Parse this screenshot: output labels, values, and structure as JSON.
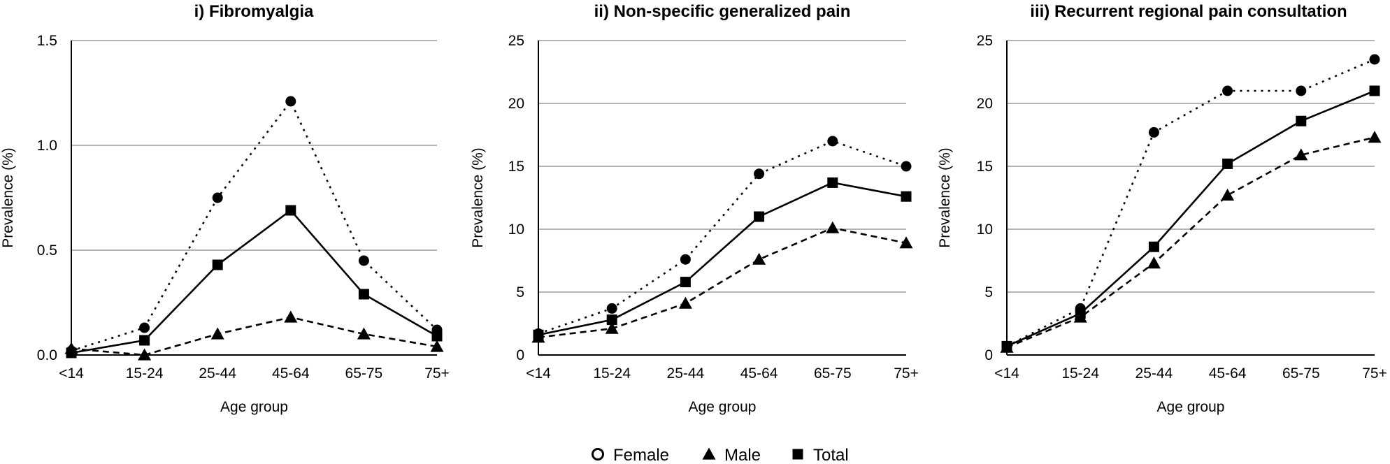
{
  "chart_data": [
    {
      "type": "line",
      "title": "i) Fibromyalgia",
      "xlabel": "Age group",
      "ylabel": "Prevalence (%)",
      "categories": [
        "<14",
        "15-24",
        "25-44",
        "45-64",
        "65-75",
        "75+"
      ],
      "ylim": [
        0,
        1.5
      ],
      "yticks": [
        "0.0",
        "0.5",
        "1.0",
        "1.5"
      ],
      "grid": true,
      "series": [
        {
          "name": "Female",
          "values": [
            0.02,
            0.13,
            0.75,
            1.21,
            0.45,
            0.12
          ]
        },
        {
          "name": "Male",
          "values": [
            0.03,
            0.0,
            0.1,
            0.18,
            0.1,
            0.04
          ]
        },
        {
          "name": "Total",
          "values": [
            0.01,
            0.07,
            0.43,
            0.69,
            0.29,
            0.09
          ]
        }
      ]
    },
    {
      "type": "line",
      "title": "ii) Non-specific generalized pain",
      "xlabel": "Age group",
      "ylabel": "Prevalence (%)",
      "categories": [
        "<14",
        "15-24",
        "25-44",
        "45-64",
        "65-75",
        "75+"
      ],
      "ylim": [
        0,
        25
      ],
      "yticks": [
        "0",
        "5",
        "10",
        "15",
        "20",
        "25"
      ],
      "grid": true,
      "series": [
        {
          "name": "Female",
          "values": [
            1.7,
            3.7,
            7.6,
            14.4,
            17.0,
            15.0
          ]
        },
        {
          "name": "Male",
          "values": [
            1.4,
            2.1,
            4.1,
            7.6,
            10.1,
            8.9
          ]
        },
        {
          "name": "Total",
          "values": [
            1.6,
            2.8,
            5.8,
            11.0,
            13.7,
            12.6
          ]
        }
      ]
    },
    {
      "type": "line",
      "title": "iii) Recurrent regional pain consultation",
      "xlabel": "Age group",
      "ylabel": "Prevalence (%)",
      "categories": [
        "<14",
        "15-24",
        "25-44",
        "45-64",
        "65-75",
        "75+"
      ],
      "ylim": [
        0,
        25
      ],
      "yticks": [
        "0",
        "5",
        "10",
        "15",
        "20",
        "25"
      ],
      "grid": true,
      "series": [
        {
          "name": "Female",
          "values": [
            0.7,
            3.7,
            17.7,
            21.0,
            21.0,
            23.5
          ]
        },
        {
          "name": "Male",
          "values": [
            0.6,
            3.0,
            7.3,
            12.7,
            15.9,
            17.3
          ]
        },
        {
          "name": "Total",
          "values": [
            0.7,
            3.3,
            8.6,
            15.2,
            18.6,
            21.0
          ]
        }
      ]
    }
  ],
  "legend": [
    {
      "label": "Female",
      "marker": "open-circle"
    },
    {
      "label": "Male",
      "marker": "filled-triangle"
    },
    {
      "label": "Total",
      "marker": "filled-square"
    }
  ],
  "colors": {
    "grid": "#b3b3b3",
    "series": "#000000"
  }
}
